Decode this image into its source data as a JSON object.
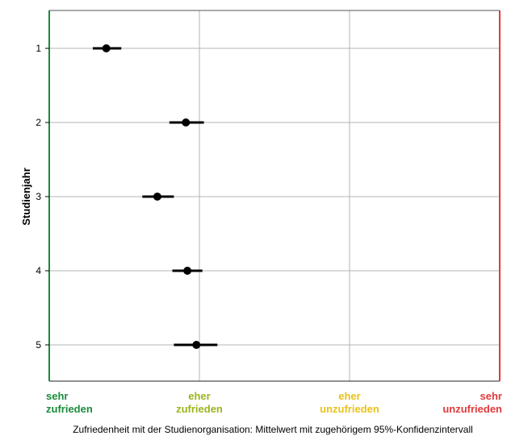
{
  "chart_data": {
    "type": "scatter",
    "ylabel": "Studienjahr",
    "xlabel": "Zufriedenheit mit der Studienorganisation: Mittelwert mit zugehörigem 95%-Konfidenzintervall",
    "ylim": [
      1,
      5
    ],
    "xlim": [
      1,
      4
    ],
    "grid": true,
    "x_tick_labels": [
      {
        "value": 1,
        "line1": "sehr",
        "line2": "zufrieden",
        "color": "#1a8a3a"
      },
      {
        "value": 2,
        "line1": "eher",
        "line2": "zufrieden",
        "color": "#9ab41e"
      },
      {
        "value": 3,
        "line1": "eher",
        "line2": "unzufrieden",
        "color": "#e8c21a"
      },
      {
        "value": 4,
        "line1": "sehr",
        "line2": "unzufrieden",
        "color": "#e03a3a"
      }
    ],
    "categories": [
      "1",
      "2",
      "3",
      "4",
      "5"
    ],
    "points": [
      {
        "y": 1,
        "mean": 1.38,
        "ci_low": 1.29,
        "ci_high": 1.48
      },
      {
        "y": 2,
        "mean": 1.91,
        "ci_low": 1.8,
        "ci_high": 2.03
      },
      {
        "y": 3,
        "mean": 1.72,
        "ci_low": 1.62,
        "ci_high": 1.83
      },
      {
        "y": 4,
        "mean": 1.92,
        "ci_low": 1.82,
        "ci_high": 2.02
      },
      {
        "y": 5,
        "mean": 1.98,
        "ci_low": 1.83,
        "ci_high": 2.12
      }
    ],
    "left_border_color": "#1a8a3a",
    "right_border_color": "#e03a3a"
  }
}
